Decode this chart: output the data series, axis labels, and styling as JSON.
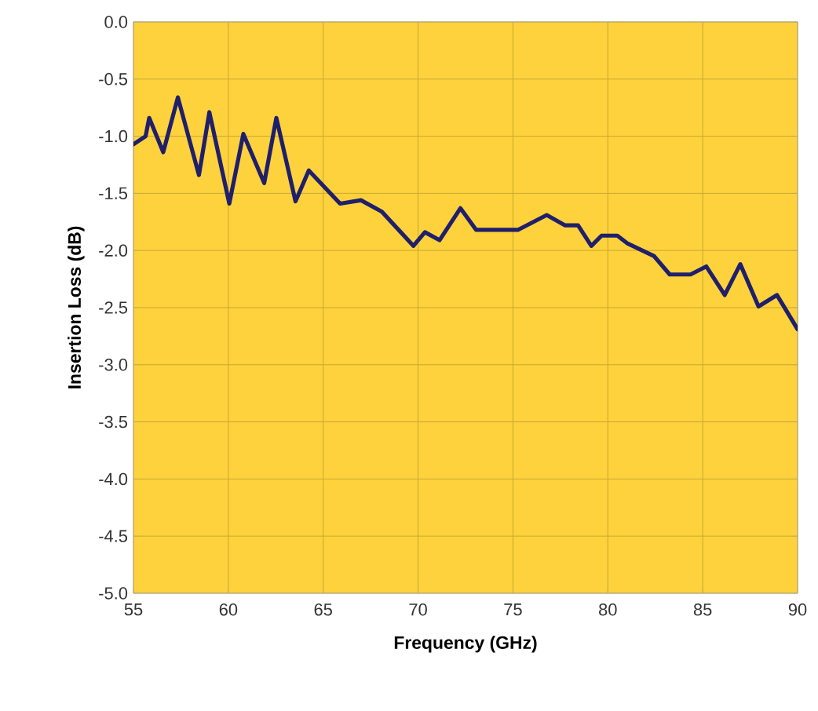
{
  "chart_data": {
    "type": "line",
    "xlabel": "Frequency (GHz)",
    "ylabel": "Insertion Loss (dB)",
    "xlim": [
      55,
      90
    ],
    "xticks": [
      55,
      60,
      65,
      70,
      75,
      80,
      85,
      90
    ],
    "ylim": [
      -5.0,
      0.0
    ],
    "yticks": [
      {
        "value": -5.0,
        "label": "-5.0"
      },
      {
        "value": -4.5,
        "label": "-4.5"
      },
      {
        "value": -4.0,
        "label": "-4.0"
      },
      {
        "value": -3.5,
        "label": "-3.5"
      },
      {
        "value": -3.0,
        "label": "-3.0"
      },
      {
        "value": -2.5,
        "label": "-2.5"
      },
      {
        "value": -2.0,
        "label": "-2.0"
      },
      {
        "value": -1.5,
        "label": "-1.5"
      },
      {
        "value": -1.0,
        "label": "-1.0"
      },
      {
        "value": -0.5,
        "label": "-0.5"
      },
      {
        "value": 0.0,
        "label": "0.0"
      }
    ],
    "grid": true,
    "marker": "none",
    "line_style": "solid",
    "series": [
      {
        "color": "#1f1f6b",
        "x": [
          55,
          55.64,
          55.83,
          56.57,
          57.34,
          58.45,
          59.0,
          60.05,
          60.79,
          61.89,
          62.53,
          63.54,
          64.24,
          65.89,
          66.99,
          68.09,
          69.75,
          70.36,
          71.13,
          72.23,
          73.06,
          75.26,
          76.78,
          77.75,
          78.43,
          79.13,
          79.67,
          80.5,
          81.05,
          82.44,
          83.26,
          84.36,
          85.19,
          86.16,
          86.98,
          87.94,
          88.91,
          90.0
        ],
        "values": [
          -1.07,
          -1.0,
          -0.84,
          -1.14,
          -0.66,
          -1.34,
          -0.79,
          -1.59,
          -0.98,
          -1.41,
          -0.84,
          -1.57,
          -1.3,
          -1.59,
          -1.56,
          -1.66,
          -1.96,
          -1.84,
          -1.91,
          -1.63,
          -1.82,
          -1.82,
          -1.69,
          -1.78,
          -1.78,
          -1.96,
          -1.87,
          -1.87,
          -1.94,
          -2.05,
          -2.21,
          -2.21,
          -2.14,
          -2.39,
          -2.12,
          -2.49,
          -2.39,
          -2.69
        ]
      }
    ]
  }
}
